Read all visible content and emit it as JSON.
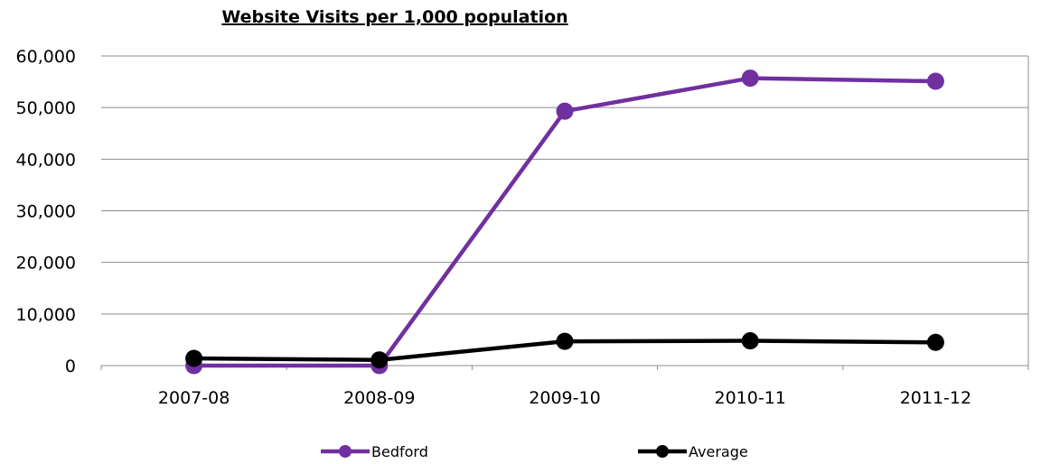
{
  "chart_data": {
    "type": "line",
    "title": "Website Visits per 1,000 population",
    "categories": [
      "2007-08",
      "2008-09",
      "2009-10",
      "2010-11",
      "2011-12"
    ],
    "series": [
      {
        "name": "Bedford",
        "values": [
          0,
          0,
          49300,
          55700,
          55100
        ],
        "color": "#7030a0"
      },
      {
        "name": "Average",
        "values": [
          1400,
          1100,
          4700,
          4800,
          4500
        ],
        "color": "#000000"
      }
    ],
    "ylim": [
      0,
      60000
    ],
    "yticks": [
      0,
      10000,
      20000,
      30000,
      40000,
      50000,
      60000
    ],
    "ytick_labels": [
      "0",
      "10,000",
      "20,000",
      "30,000",
      "40,000",
      "50,000",
      "60,000"
    ],
    "grid": true,
    "legend_position": "bottom"
  }
}
